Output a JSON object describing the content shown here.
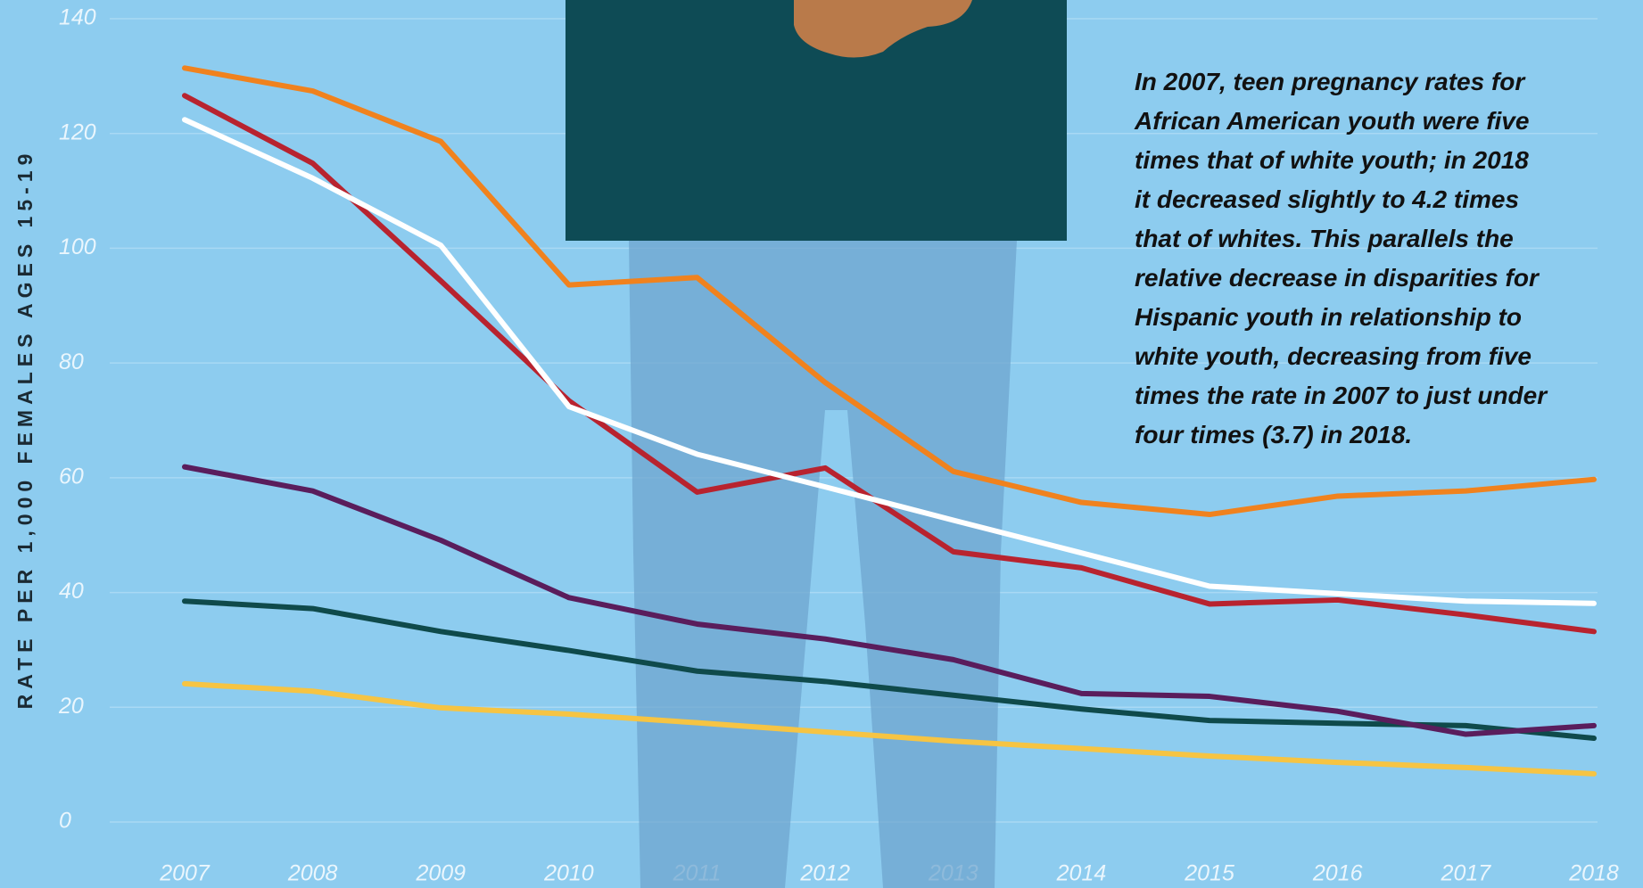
{
  "chart_data": {
    "type": "line",
    "y_label": "RATE PER 1,000 FEMALES AGES 15-19",
    "annotation": [
      "In 2007, teen pregnancy rates for",
      "African American youth were five",
      "times that of white youth; in 2018",
      "it decreased slightly to 4.2 times",
      "that of whites. This parallels the",
      "relative decrease in disparities for",
      "Hispanic youth in relationship to",
      "white youth, decreasing from five",
      "times the rate in 2007 to just under",
      "four times (3.7) in 2018."
    ],
    "x": [
      2007,
      2008,
      2009,
      2010,
      2011,
      2012,
      2013,
      2014,
      2015,
      2016,
      2017,
      2018
    ],
    "xlim": [
      2007,
      2018
    ],
    "ylim": [
      0,
      140
    ],
    "yticks": [
      0,
      20,
      40,
      60,
      80,
      100,
      120,
      140
    ],
    "grid": true,
    "series": [
      {
        "color": "#0f4a4b",
        "values": [
          38.5,
          37.2,
          33.2,
          29.9,
          26.3,
          24.5,
          22.1,
          19.7,
          17.7,
          17.2,
          16.8,
          14.6
        ]
      },
      {
        "color": "#f6c443",
        "values": [
          24.1,
          22.8,
          19.9,
          18.8,
          17.3,
          15.7,
          14.1,
          12.8,
          11.5,
          10.4,
          9.5,
          8.4
        ]
      },
      {
        "color": "#5a1d5c",
        "values": [
          61.9,
          57.7,
          49.1,
          39.1,
          34.5,
          31.9,
          28.3,
          22.4,
          21.9,
          19.3,
          15.3,
          16.8
        ]
      },
      {
        "color": "#f0821e",
        "values": [
          131.4,
          127.4,
          118.6,
          93.6,
          94.9,
          76.6,
          61.1,
          55.7,
          53.6,
          56.8,
          57.7,
          59.7
        ]
      },
      {
        "color": "#b8232f",
        "values": [
          126.6,
          114.8,
          94.3,
          73.4,
          57.5,
          61.7,
          47.1,
          44.3,
          38.0,
          38.7,
          36.1,
          33.2
        ]
      },
      {
        "color": "#ffffff",
        "values": [
          122.4,
          112.2,
          100.5,
          72.4,
          64.1,
          58.4,
          52.6,
          46.9,
          41.1,
          39.8,
          38.5,
          38.1
        ]
      }
    ]
  }
}
